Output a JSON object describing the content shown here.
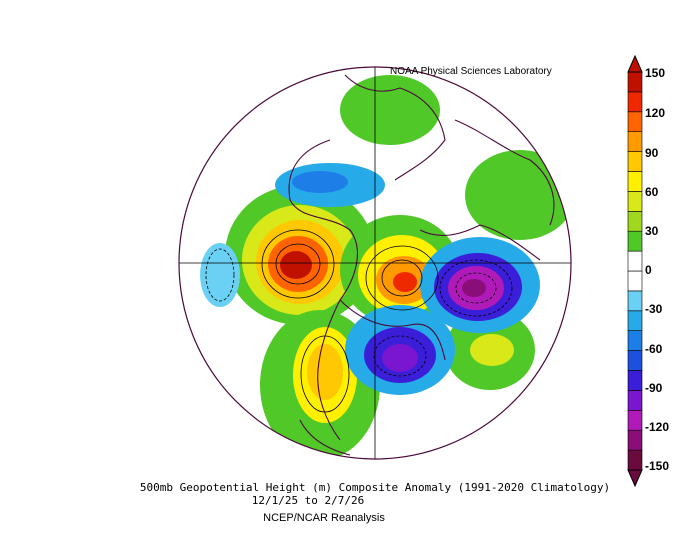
{
  "credit": "NOAA Physical Sciences Laboratory",
  "caption": {
    "line1": "500mb Geopotential Height (m) Composite Anomaly (1991-2020 Climatology)",
    "line2": "12/1/25  to 2/7/26",
    "line3": "NCEP/NCAR Reanalysis"
  },
  "colorbar": {
    "ticks": [
      "150",
      "120",
      "90",
      "60",
      "30",
      "0",
      "-30",
      "-60",
      "-90",
      "-120",
      "-150"
    ],
    "colors": [
      "#6b0a3c",
      "#8b0e78",
      "#b01ab8",
      "#7a16d0",
      "#3b1ed8",
      "#1e50e0",
      "#1e7ee8",
      "#26aae8",
      "#6ad0f4",
      "#ffffff",
      "#ffffff",
      "#50c828",
      "#a0d820",
      "#d8e818",
      "#fff000",
      "#ffc800",
      "#ff9a00",
      "#ff6400",
      "#f02800",
      "#c01000"
    ]
  },
  "icons": {
    "map": "polar-stereographic-map",
    "colorbar": "colorbar-icon"
  }
}
